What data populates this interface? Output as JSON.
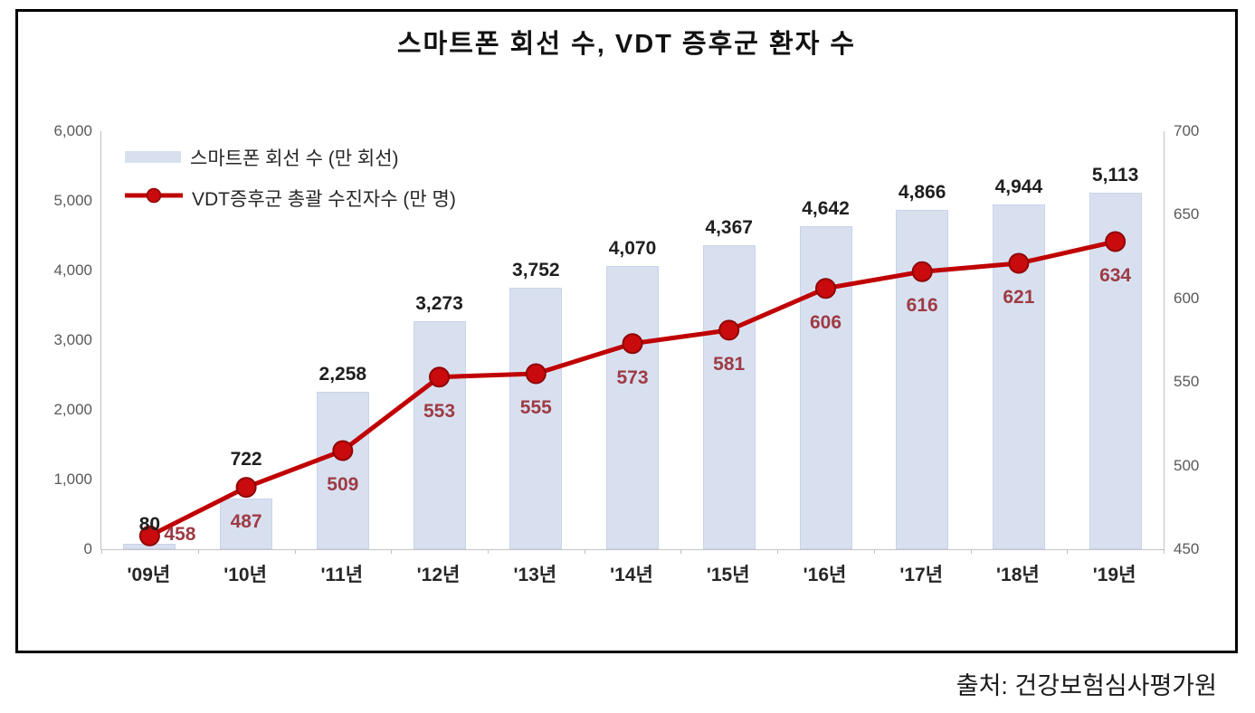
{
  "title": "스마트폰 회선 수, VDT 증후군 환자 수",
  "source": "출처: 건강보험심사평가원",
  "legend": {
    "items": [
      {
        "label": "스마트폰 회선 수 (만 회선)",
        "type": "bar"
      },
      {
        "label": "VDT증후군 총괄 수진자수 (만 명)",
        "type": "line"
      }
    ]
  },
  "chart_data": {
    "type": "combo-bar-line",
    "categories": [
      "'09년",
      "'10년",
      "'11년",
      "'12년",
      "'13년",
      "'14년",
      "'15년",
      "'16년",
      "'17년",
      "'18년",
      "'19년"
    ],
    "series": [
      {
        "name": "스마트폰 회선 수 (만 회선)",
        "type": "bar",
        "axis": "left",
        "values": [
          80,
          722,
          2258,
          3273,
          3752,
          4070,
          4367,
          4642,
          4866,
          4944,
          5113
        ],
        "labels": [
          "80",
          "722",
          "2,258",
          "3,273",
          "3,752",
          "4,070",
          "4,367",
          "4,642",
          "4,866",
          "4,944",
          "5,113"
        ]
      },
      {
        "name": "VDT증후군 총괄 수진자수 (만 명)",
        "type": "line",
        "axis": "right",
        "values": [
          458,
          487,
          509,
          553,
          555,
          573,
          581,
          606,
          616,
          621,
          634
        ],
        "labels": [
          "458",
          "487",
          "509",
          "553",
          "555",
          "573",
          "581",
          "606",
          "616",
          "621",
          "634"
        ]
      }
    ],
    "left_axis": {
      "min": 0,
      "max": 6000,
      "step": 1000,
      "ticks": [
        "0",
        "1,000",
        "2,000",
        "3,000",
        "4,000",
        "5,000",
        "6,000"
      ]
    },
    "right_axis": {
      "min": 450,
      "max": 700,
      "step": 50,
      "ticks": [
        "450",
        "500",
        "550",
        "600",
        "650",
        "700"
      ]
    },
    "grid": false,
    "legend_position": "top-left-inside",
    "colors": {
      "bar_fill": "#d8e0f0",
      "bar_border": "#c9d3e8",
      "line": "#c00000",
      "marker_fill": "#c90b0d",
      "marker_stroke": "#8f0406",
      "bar_label": "#1f1f1f",
      "line_label": "#9e3b44",
      "axis_text": "#595959",
      "axis_line": "#c3c3c3"
    }
  }
}
